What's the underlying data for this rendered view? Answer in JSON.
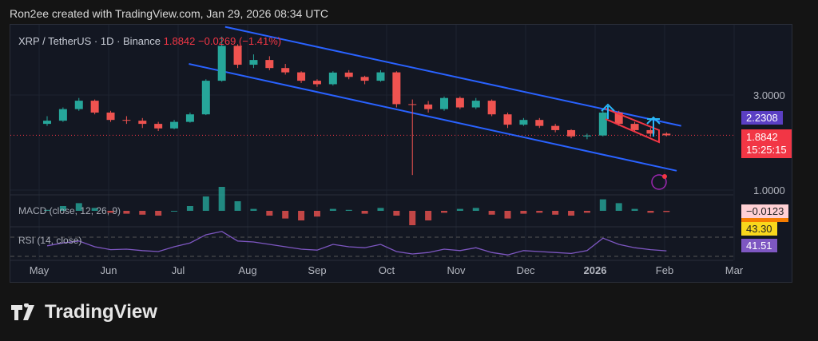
{
  "attribution": "Ron2ee created with TradingView.com, Jan 29, 2026 08:34 UTC",
  "legend": {
    "symbol": "XRP / TetherUS · 1D · Binance",
    "price": "1.8842",
    "change": "−0.0269 (−1.41%)"
  },
  "tags": {
    "upper_channel": "2.2308",
    "last_price": "1.8842",
    "countdown": "15:25:15",
    "macd": "−0.0123",
    "rsi_ma": "43.30",
    "rsi": "41.51"
  },
  "indicators": {
    "macd_label": "MACD (close, 12, 26, 9)",
    "rsi_label": "RSI (14, close)"
  },
  "brand": "TradingView",
  "colors": {
    "up": "#26a69a",
    "down": "#ef5350",
    "channel": "#2962ff",
    "wedge": "#f23645",
    "arrow": "#29b6f6",
    "macd_tag": "#ffd0d4",
    "rsi_ma": "#f9d71c",
    "rsi": "#7e57c2"
  },
  "chart_data": {
    "type": "candlestick",
    "scale": "log",
    "grid": true,
    "y_ticks": [
      3.0,
      1.0
    ],
    "x_ticks": [
      "May",
      "Jun",
      "Jul",
      "Aug",
      "Sep",
      "Oct",
      "Nov",
      "Dec",
      "2026",
      "Feb",
      "Mar"
    ],
    "candles": [
      [
        "2025-05-01",
        2.15,
        2.35,
        2.1,
        2.23
      ],
      [
        "2025-05-08",
        2.23,
        2.6,
        2.2,
        2.55
      ],
      [
        "2025-05-15",
        2.55,
        2.9,
        2.5,
        2.81
      ],
      [
        "2025-05-22",
        2.81,
        2.85,
        2.4,
        2.45
      ],
      [
        "2025-05-29",
        2.45,
        2.5,
        2.2,
        2.25
      ],
      [
        "2025-06-05",
        2.25,
        2.35,
        2.15,
        2.23
      ],
      [
        "2025-06-12",
        2.23,
        2.3,
        2.05,
        2.15
      ],
      [
        "2025-06-19",
        2.15,
        2.2,
        1.98,
        2.04
      ],
      [
        "2025-06-26",
        2.04,
        2.25,
        2.02,
        2.2
      ],
      [
        "2025-07-03",
        2.2,
        2.45,
        2.18,
        2.4
      ],
      [
        "2025-07-10",
        2.4,
        3.6,
        2.38,
        3.54
      ],
      [
        "2025-07-17",
        3.54,
        5.9,
        3.5,
        5.3
      ],
      [
        "2025-07-24",
        5.3,
        5.4,
        4.1,
        4.26
      ],
      [
        "2025-07-31",
        4.26,
        4.8,
        4.1,
        4.5
      ],
      [
        "2025-08-07",
        4.5,
        4.7,
        4.0,
        4.1
      ],
      [
        "2025-08-14",
        4.1,
        4.3,
        3.8,
        3.9
      ],
      [
        "2025-08-21",
        3.9,
        3.95,
        3.45,
        3.54
      ],
      [
        "2025-08-28",
        3.54,
        3.6,
        3.3,
        3.4
      ],
      [
        "2025-09-04",
        3.4,
        3.95,
        3.35,
        3.89
      ],
      [
        "2025-09-11",
        3.89,
        4.0,
        3.6,
        3.7
      ],
      [
        "2025-09-18",
        3.7,
        3.75,
        3.4,
        3.54
      ],
      [
        "2025-09-25",
        3.54,
        4.0,
        3.5,
        3.9
      ],
      [
        "2025-10-02",
        3.9,
        3.95,
        2.6,
        2.7
      ],
      [
        "2025-10-09",
        2.7,
        2.85,
        1.19,
        2.69
      ],
      [
        "2025-10-16",
        2.69,
        2.8,
        2.45,
        2.55
      ],
      [
        "2025-10-23",
        2.55,
        2.95,
        2.5,
        2.9
      ],
      [
        "2025-10-30",
        2.9,
        2.95,
        2.55,
        2.6
      ],
      [
        "2025-11-06",
        2.6,
        2.9,
        2.55,
        2.81
      ],
      [
        "2025-11-13",
        2.81,
        2.85,
        2.35,
        2.4
      ],
      [
        "2025-11-20",
        2.4,
        2.45,
        2.05,
        2.13
      ],
      [
        "2025-11-27",
        2.13,
        2.3,
        2.1,
        2.25
      ],
      [
        "2025-12-04",
        2.25,
        2.3,
        2.05,
        2.1
      ],
      [
        "2025-12-11",
        2.1,
        2.15,
        1.95,
        2.0
      ],
      [
        "2025-12-18",
        2.0,
        2.02,
        1.82,
        1.86
      ],
      [
        "2025-12-25",
        1.86,
        1.92,
        1.8,
        1.88
      ],
      [
        "2026-01-01",
        1.88,
        2.55,
        1.86,
        2.45
      ],
      [
        "2026-01-08",
        2.45,
        2.5,
        2.1,
        2.15
      ],
      [
        "2026-01-15",
        2.15,
        2.2,
        1.95,
        2.0
      ],
      [
        "2026-01-22",
        2.0,
        2.05,
        1.85,
        1.92
      ],
      [
        "2026-01-29",
        1.92,
        1.95,
        1.86,
        1.8842
      ]
    ],
    "upper_channel": [
      [
        "2025-07-22",
        6.6
      ],
      [
        "2026-02-08",
        2.1
      ]
    ],
    "lower_channel": [
      [
        "2025-07-06",
        4.3
      ],
      [
        "2026-02-06",
        1.25
      ]
    ],
    "macd_hist": [
      0.01,
      0.05,
      0.08,
      0.03,
      -0.02,
      -0.03,
      -0.04,
      -0.05,
      0,
      0.05,
      0.15,
      0.25,
      0.1,
      0.02,
      -0.05,
      -0.08,
      -0.1,
      -0.06,
      0.02,
      0.01,
      -0.03,
      0.03,
      -0.05,
      -0.15,
      -0.1,
      -0.02,
      0.02,
      0.03,
      -0.04,
      -0.08,
      -0.03,
      -0.02,
      -0.04,
      -0.05,
      -0.02,
      0.12,
      0.08,
      0.02,
      -0.02,
      -0.0123
    ],
    "rsi": [
      52,
      58,
      62,
      50,
      44,
      45,
      42,
      40,
      50,
      58,
      75,
      82,
      62,
      60,
      55,
      50,
      45,
      43,
      55,
      50,
      48,
      55,
      40,
      35,
      38,
      45,
      42,
      48,
      38,
      33,
      42,
      40,
      38,
      36,
      42,
      68,
      55,
      48,
      44,
      41.51
    ]
  }
}
